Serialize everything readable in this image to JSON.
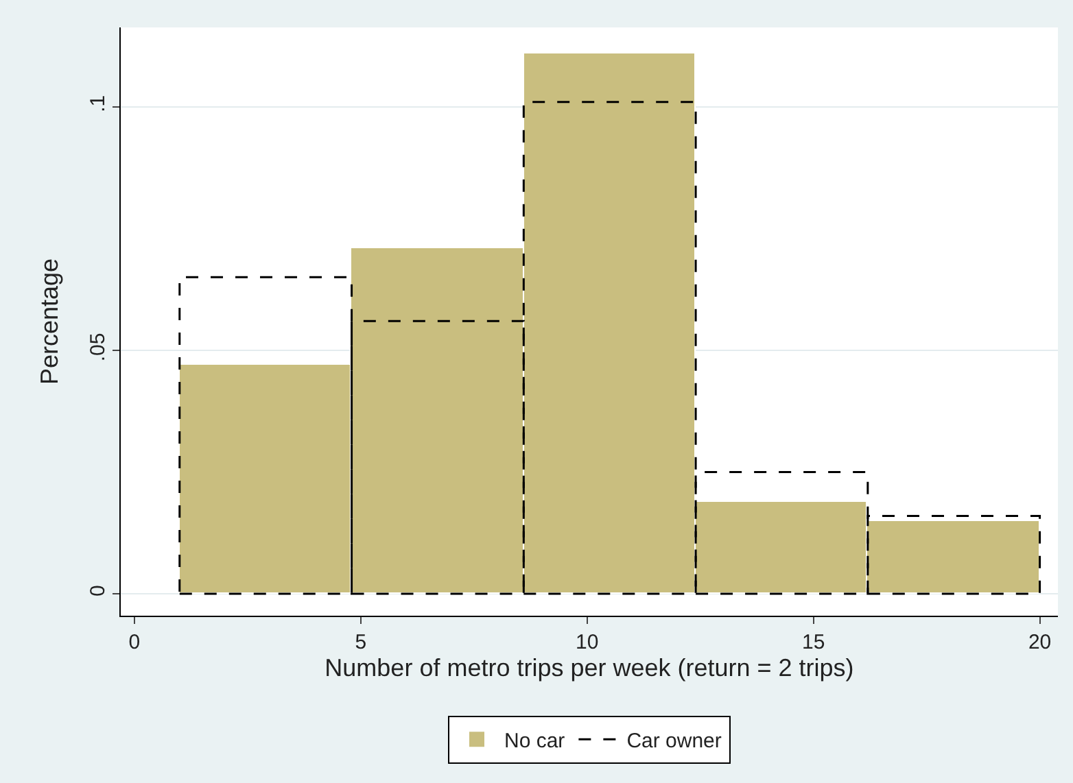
{
  "chart_data": {
    "type": "histogram",
    "xlabel": "Number of metro trips per week (return = 2 trips)",
    "ylabel": "Percentage",
    "bins": [
      1,
      4.8,
      8.6,
      12.4,
      16.2,
      20
    ],
    "series": [
      {
        "name": "No car",
        "color": "#c9be7f",
        "values": [
          0.047,
          0.071,
          0.111,
          0.019,
          0.015
        ]
      },
      {
        "name": "Car owner",
        "color": "#000000",
        "line_style": "dashed",
        "values": [
          0.065,
          0.056,
          0.101,
          0.025,
          0.016
        ]
      }
    ],
    "xlim": [
      -0.3,
      20.4
    ],
    "xticks": [
      0,
      5,
      10,
      15,
      20
    ],
    "ylim": [
      -0.0045,
      0.1163
    ],
    "yticks": [
      {
        "value": 0,
        "label": "0"
      },
      {
        "value": 0.05,
        "label": ".05"
      },
      {
        "value": 0.1,
        "label": ".1"
      }
    ],
    "grid": "y",
    "legend": "bottom"
  }
}
